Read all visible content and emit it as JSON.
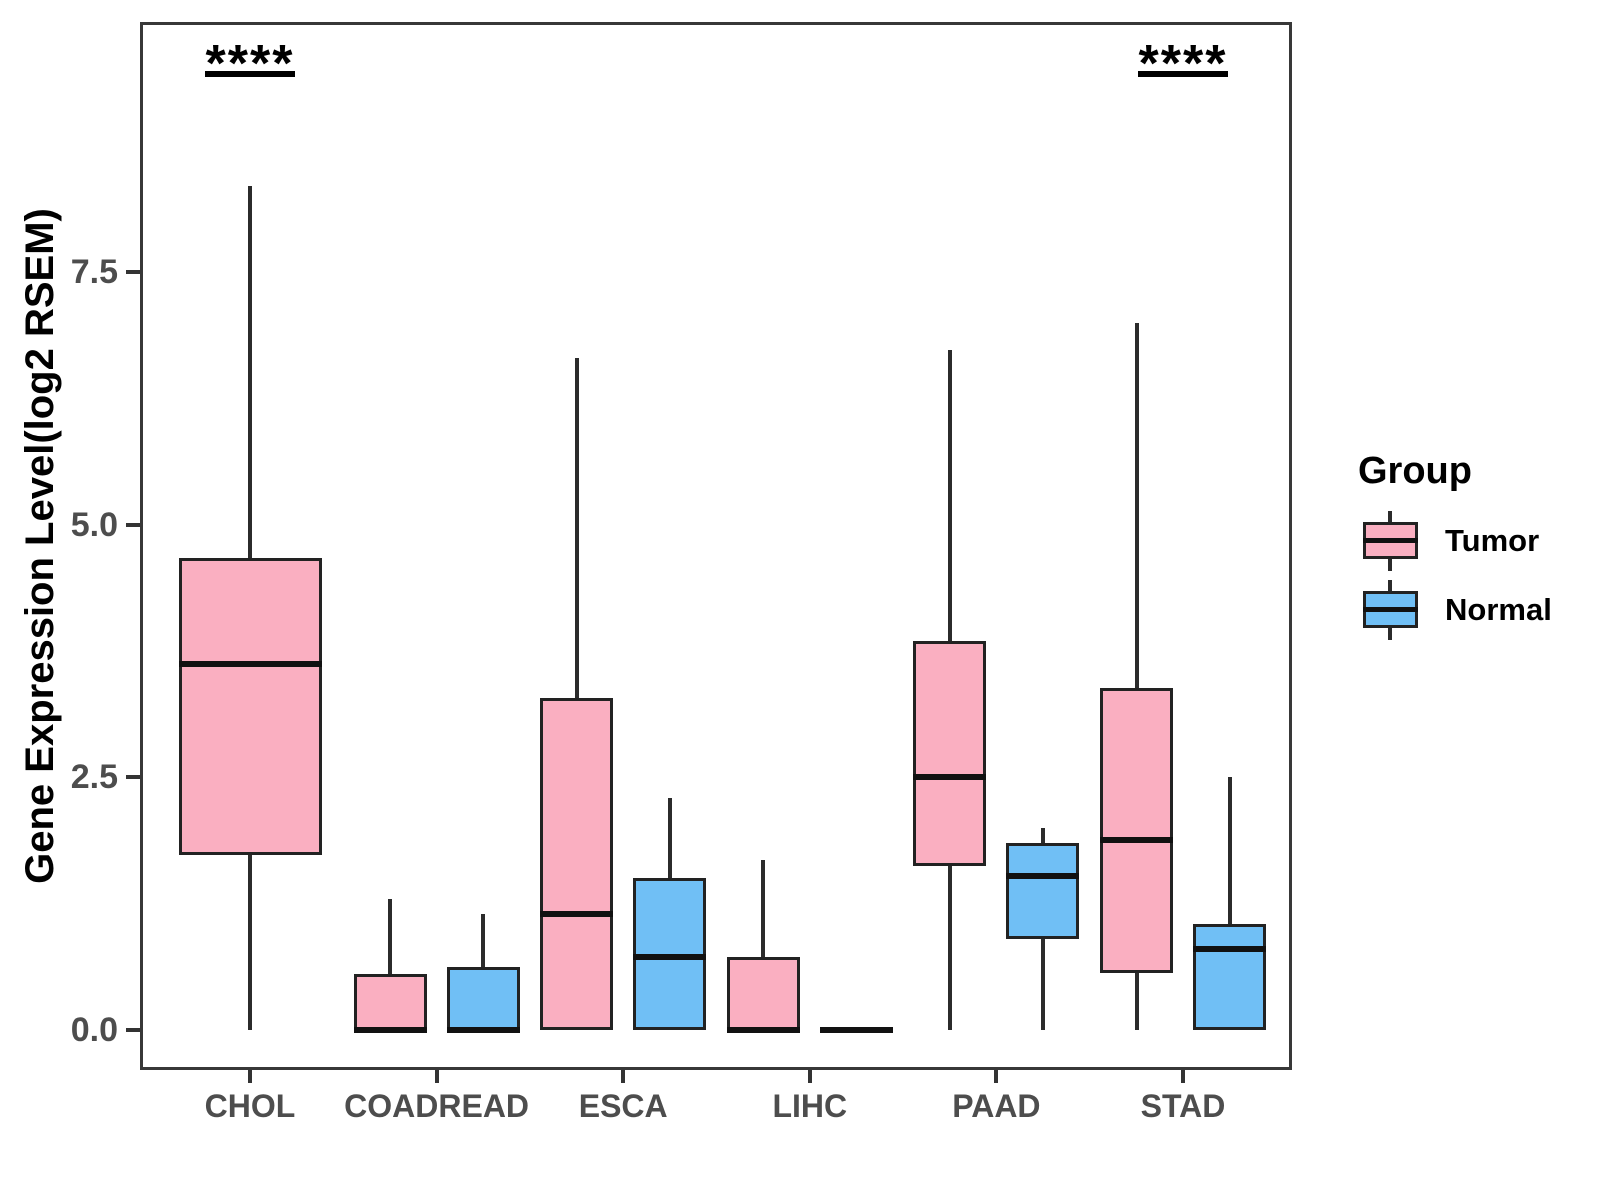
{
  "chart_data": {
    "type": "boxplot",
    "title": "",
    "ylabel": "Gene Expression Level(log2 RSEM)",
    "xlabel": "",
    "categories": [
      "CHOL",
      "COADREAD",
      "ESCA",
      "LIHC",
      "PAAD",
      "STAD"
    ],
    "ytick_labels": [
      "0.0",
      "2.5",
      "5.0",
      "7.5"
    ],
    "ytick_values": [
      0,
      2.5,
      5,
      7.5
    ],
    "ylim": [
      -0.4,
      10.0
    ],
    "grid": false,
    "legend": {
      "title": "Group",
      "position": "right",
      "items": [
        {
          "label": "Tumor",
          "color": "#FAAFC1"
        },
        {
          "label": "Normal",
          "color": "#70BFF5"
        }
      ]
    },
    "series": [
      {
        "name": "Tumor",
        "color": "#FAAFC1",
        "boxes": [
          {
            "category": "CHOL",
            "min": 0,
            "q1": 1.73,
            "median": 3.62,
            "q3": 4.67,
            "max": 8.35,
            "wide": true
          },
          {
            "category": "COADREAD",
            "min": 0,
            "q1": 0,
            "median": 0,
            "q3": 0.55,
            "max": 1.3
          },
          {
            "category": "ESCA",
            "min": 0,
            "q1": 0,
            "median": 1.15,
            "q3": 3.28,
            "max": 6.65
          },
          {
            "category": "LIHC",
            "min": 0,
            "q1": 0,
            "median": 0,
            "q3": 0.72,
            "max": 1.68
          },
          {
            "category": "PAAD",
            "min": 0,
            "q1": 1.62,
            "median": 2.5,
            "q3": 3.85,
            "max": 6.73
          },
          {
            "category": "STAD",
            "min": 0,
            "q1": 0.56,
            "median": 1.88,
            "q3": 3.38,
            "max": 7.0
          }
        ]
      },
      {
        "name": "Normal",
        "color": "#70BFF5",
        "boxes": [
          {
            "category": "COADREAD",
            "min": 0,
            "q1": 0,
            "median": 0,
            "q3": 0.62,
            "max": 1.15
          },
          {
            "category": "ESCA",
            "min": 0,
            "q1": 0,
            "median": 0.72,
            "q3": 1.5,
            "max": 2.3
          },
          {
            "category": "LIHC",
            "min": 0,
            "q1": 0,
            "median": 0,
            "q3": 0,
            "max": 0
          },
          {
            "category": "PAAD",
            "min": 0,
            "q1": 0.9,
            "median": 1.52,
            "q3": 1.85,
            "max": 2.0
          },
          {
            "category": "STAD",
            "min": 0,
            "q1": 0,
            "median": 0.8,
            "q3": 1.05,
            "max": 2.5
          }
        ]
      }
    ],
    "annotations": [
      {
        "category": "CHOL",
        "label": "****"
      },
      {
        "category": "STAD",
        "label": "****"
      }
    ],
    "colors": {
      "tumor_fill": "#FAAFC1",
      "normal_fill": "#70BFF5",
      "box_stroke": "#222222",
      "axis_text": "#4d4d4d",
      "panel_border": "#383838",
      "annotation": "#000000"
    }
  }
}
